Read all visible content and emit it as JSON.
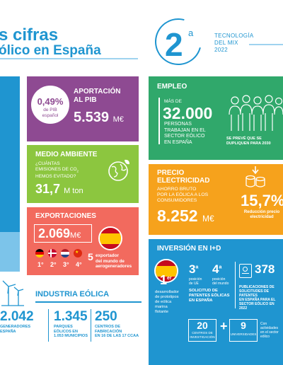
{
  "header": {
    "title_line1": "s cifras",
    "title_line2": "ólico en España",
    "rank": "2",
    "rank_sup": "a",
    "tech_label_1": "TECNOLOGÍA",
    "tech_label_2": "DEL MIX",
    "tech_label_3": "2022"
  },
  "pib": {
    "percent": "0,49%",
    "percent_sub_1": "de PIB",
    "percent_sub_2": "español",
    "title_1": "APORTACIÓN",
    "title_2": "AL PIB",
    "value": "5.539",
    "unit": "M€"
  },
  "environment": {
    "title": "MEDIO AMBIENTE",
    "question_1": "¿CUÁNTAS",
    "question_2": "EMISIONES DE CO",
    "question_sub": "2",
    "question_3": "HEMOS EVITADO?",
    "value": "31,7",
    "unit": "M ton"
  },
  "exports": {
    "title": "EXPORTACIONES",
    "value": "2.069",
    "unit": "M€",
    "ranks": [
      "1°",
      "2°",
      "3°",
      "4°"
    ],
    "position": "5",
    "desc_1": "exportador",
    "desc_2": "del mundo de",
    "desc_3": "aerogeneradores"
  },
  "employment": {
    "title": "EMPLEO",
    "more_than": "MÁS DE",
    "value": "32.000",
    "desc_1": "PERSONAS",
    "desc_2": "TRABAJAN EN EL",
    "desc_3": "SECTOR EÓLICO",
    "desc_4": "EN ESPAÑA",
    "forecast": "SE PREVÉ QUE SE DUPLIQUEN PARA 2030"
  },
  "price": {
    "title_1": "PRECIO",
    "title_2": "ELECTRICIDAD",
    "desc_1": "AHORRO BRUTO",
    "desc_2": "POR LA EÓLICA A LOS",
    "desc_3": "CONSUMIDORES",
    "value": "8.252",
    "unit": "M€",
    "percent": "15,7%",
    "reduction_1": "Reducción precio",
    "reduction_2": "electricidad"
  },
  "investment": {
    "title": "INVERSIÓN EN I+D",
    "first": "1",
    "first_sup": "er",
    "first_desc_1": "desarrollador",
    "first_desc_2": "de prototipos",
    "first_desc_3": "de eólica",
    "first_desc_4": "marina",
    "first_desc_5": "flotante",
    "third": "3",
    "third_sup": "a",
    "third_sub_1": "posición",
    "third_sub_2": "de UE",
    "fourth": "4",
    "fourth_sup": "a",
    "fourth_sub_1": "posición",
    "fourth_sub_2": "del mundo",
    "patents_1": "SOLICITUD DE",
    "patents_2": "PATENTES EÓLICAS",
    "patents_3": "EN ESPAÑA",
    "publications_value": "378",
    "publications_1": "PUBLICACIONES DE",
    "publications_2": "SOLICITUDES DE PATENTES",
    "publications_3": "EN ESPAÑA PARA EL",
    "publications_4": "SECTOR EÓLICO EN 2022",
    "centers_value": "20",
    "centers_1": "CENTROS DE",
    "centers_2": "INVESTIGACIÓN",
    "plus": "+",
    "universities_value": "9",
    "universities_label": "UNIVERSIDADES",
    "activity_1": "Con",
    "activity_2": "actividades",
    "activity_3": "en el sector",
    "activity_4": "eólico"
  },
  "industry": {
    "title": "INDUSTRIA EÓLICA",
    "stats": [
      {
        "value": "2.042",
        "label_1": "GENERADORES",
        "label_2": "ESPAÑA",
        "label_3": ""
      },
      {
        "value": "1.345",
        "label_1": "PARQUES",
        "label_2": "EÓLICOS EN",
        "label_3": "1.053 MUNICIPIOS"
      },
      {
        "value": "250",
        "label_1": "CENTROS DE",
        "label_2": "FABRICACIÓN",
        "label_3": "EN 16 DE LAS 17 CCAA"
      }
    ]
  },
  "colors": {
    "brand_blue": "#1f95d0",
    "purple": "#8e4a92",
    "lime": "#8cc63f",
    "coral": "#f26a5e",
    "green": "#30a86b",
    "orange": "#f6a21c"
  }
}
